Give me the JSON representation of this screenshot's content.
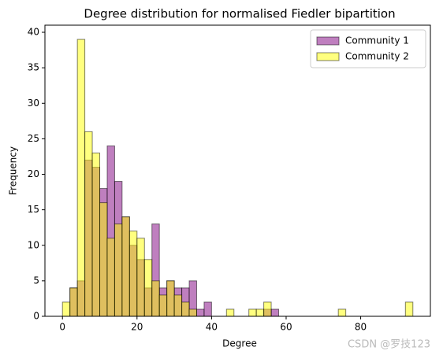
{
  "chart_data": {
    "type": "histogram",
    "title": "Degree distribution for normalised Fiedler bipartition",
    "x_label": "Degree",
    "y_label": "Frequency",
    "bins": [
      0,
      2,
      4,
      6,
      8,
      10,
      12,
      14,
      16,
      18,
      20,
      22,
      24,
      26,
      28,
      30,
      32,
      34,
      36,
      38,
      40,
      42,
      44,
      46,
      48,
      50,
      52,
      54,
      56,
      58,
      60,
      62,
      64,
      66,
      68,
      70,
      72,
      74,
      76,
      78,
      80,
      82,
      84,
      86,
      88,
      90,
      92,
      94
    ],
    "series": [
      {
        "name": "Community 1",
        "color": "#800080",
        "values": [
          0,
          4,
          5,
          22,
          21,
          18,
          24,
          19,
          14,
          10,
          8,
          4,
          13,
          4,
          5,
          4,
          4,
          5,
          1,
          2,
          0,
          0,
          0,
          0,
          0,
          0,
          0,
          1,
          1,
          0,
          0,
          0,
          0,
          0,
          0,
          0,
          0,
          0,
          0,
          0,
          0,
          0,
          0,
          0,
          0,
          0,
          0
        ]
      },
      {
        "name": "Community 2",
        "color": "#ffff00",
        "values": [
          2,
          4,
          39,
          26,
          23,
          16,
          11,
          13,
          14,
          12,
          11,
          8,
          5,
          3,
          5,
          3,
          2,
          1,
          0,
          0,
          0,
          0,
          1,
          0,
          0,
          1,
          1,
          2,
          0,
          0,
          0,
          0,
          0,
          0,
          0,
          0,
          0,
          1,
          0,
          0,
          0,
          0,
          0,
          0,
          0,
          0,
          2
        ]
      }
    ],
    "xlim": [
      -4.7,
      98.7
    ],
    "ylim": [
      0,
      41
    ],
    "xticks": [
      0,
      20,
      40,
      60,
      80
    ],
    "yticks": [
      0,
      5,
      10,
      15,
      20,
      25,
      30,
      35,
      40
    ],
    "legend": "upper right",
    "watermark": "CSDN @罗技123"
  }
}
